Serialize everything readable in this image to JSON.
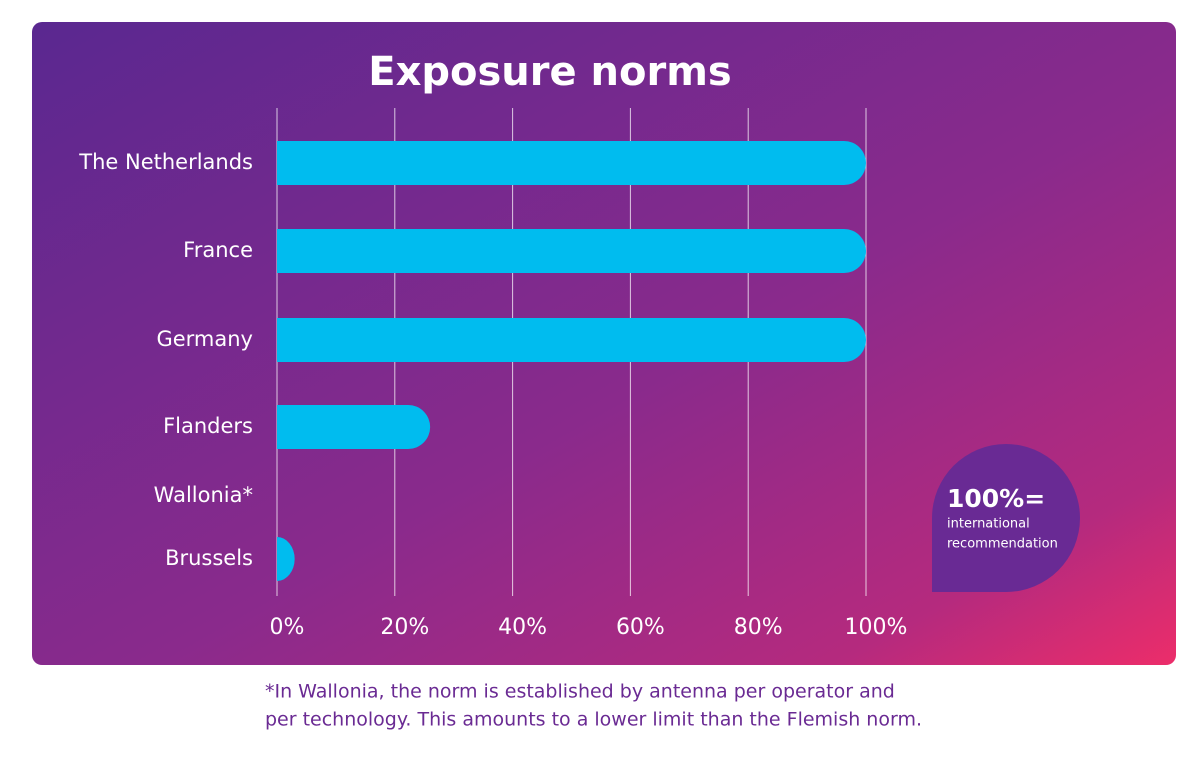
{
  "chart_data": {
    "type": "barh",
    "title": "Exposure norms",
    "categories": [
      "The Netherlands",
      "France",
      "Germany",
      "Flanders",
      "Wallonia*",
      "Brussels"
    ],
    "values": [
      100,
      100,
      100,
      26,
      null,
      3
    ],
    "color": "#00bcef",
    "xlim": [
      0,
      100
    ],
    "xticks": [
      {
        "value": 0,
        "label": "0%"
      },
      {
        "value": 20,
        "label": "20%"
      },
      {
        "value": 40,
        "label": "40%"
      },
      {
        "value": 60,
        "label": "60%"
      },
      {
        "value": 80,
        "label": "80%"
      },
      {
        "value": 100,
        "label": "100%"
      }
    ],
    "grid": true,
    "annotation": {
      "headline": "100%=",
      "lines": [
        "international",
        "recommendation"
      ]
    },
    "footnote": [
      "*In Wallonia, the norm is established by antenna per operator and",
      "per technology. This amounts to a lower limit than the Flemish norm."
    ]
  }
}
